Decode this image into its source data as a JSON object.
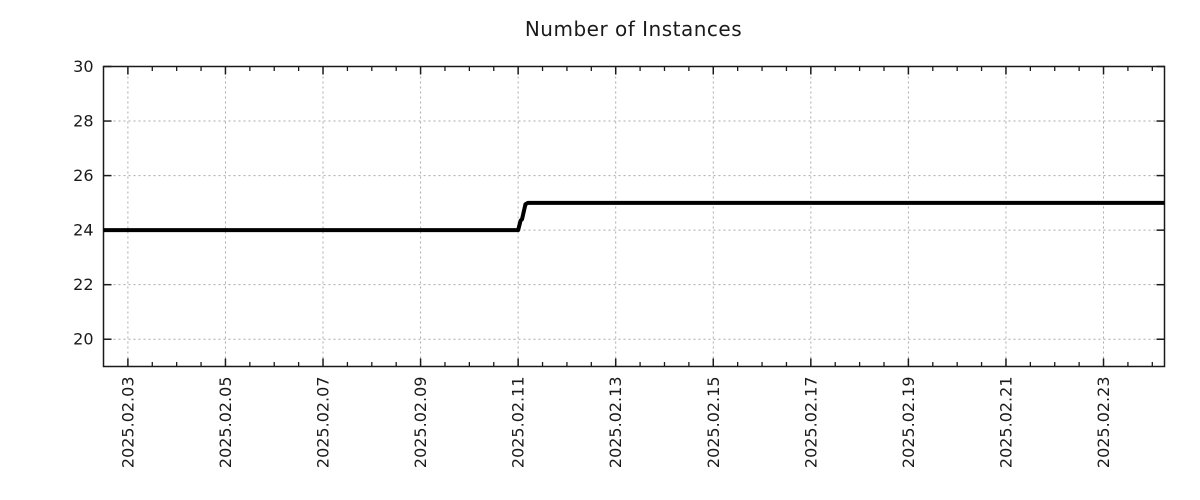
{
  "chart_data": {
    "type": "line",
    "title": "Number of Instances",
    "xlabel": "",
    "ylabel": "",
    "xlim": [
      2.5,
      24.25
    ],
    "ylim": [
      19,
      30
    ],
    "grid": true,
    "legend_position": "none",
    "x_ticks": [
      {
        "value": 3,
        "label": "2025.02.03"
      },
      {
        "value": 5,
        "label": "2025.02.05"
      },
      {
        "value": 7,
        "label": "2025.02.07"
      },
      {
        "value": 9,
        "label": "2025.02.09"
      },
      {
        "value": 11,
        "label": "2025.02.11"
      },
      {
        "value": 13,
        "label": "2025.02.13"
      },
      {
        "value": 15,
        "label": "2025.02.15"
      },
      {
        "value": 17,
        "label": "2025.02.17"
      },
      {
        "value": 19,
        "label": "2025.02.19"
      },
      {
        "value": 21,
        "label": "2025.02.21"
      },
      {
        "value": 23,
        "label": "2025.02.23"
      }
    ],
    "x_minor_step": 0.5,
    "y_ticks": [
      20,
      22,
      24,
      26,
      28,
      30
    ],
    "series": [
      {
        "name": "instances",
        "color": "#000000",
        "points": [
          [
            2.5,
            24
          ],
          [
            11.0,
            24
          ],
          [
            11.05,
            24.35
          ],
          [
            11.08,
            24.4
          ],
          [
            11.15,
            24.95
          ],
          [
            11.2,
            25
          ],
          [
            24.25,
            25
          ]
        ]
      }
    ],
    "colors": {
      "line": "#000000",
      "grid": "#aaaaaa",
      "axis": "#1a1a1a",
      "text": "#1a1a1a",
      "background": "#ffffff"
    }
  }
}
